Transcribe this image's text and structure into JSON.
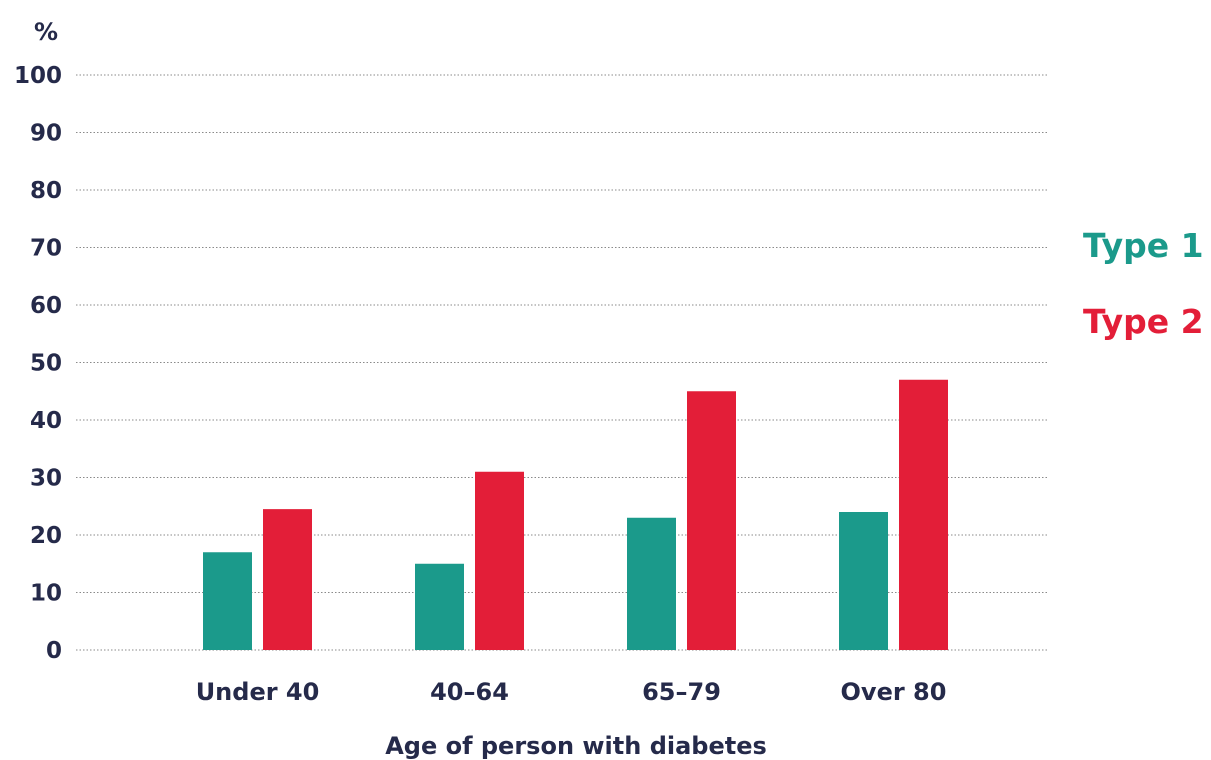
{
  "chart_data": {
    "type": "bar",
    "unit_label": "%",
    "xlabel": "Age of person with diabetes",
    "categories": [
      "Under 40",
      "40–64",
      "65–79",
      "Over 80"
    ],
    "series": [
      {
        "name": "Type 1",
        "color": "#1b9a8b",
        "values": [
          17,
          15,
          23,
          24
        ]
      },
      {
        "name": "Type 2",
        "color": "#e31e38",
        "values": [
          24.5,
          31,
          45,
          47
        ]
      }
    ],
    "ylim": [
      0,
      100
    ],
    "yticks": [
      "0",
      "10",
      "20",
      "30",
      "40",
      "50",
      "60",
      "70",
      "80",
      "90",
      "100"
    ],
    "grid": true,
    "legend_position": "right"
  }
}
